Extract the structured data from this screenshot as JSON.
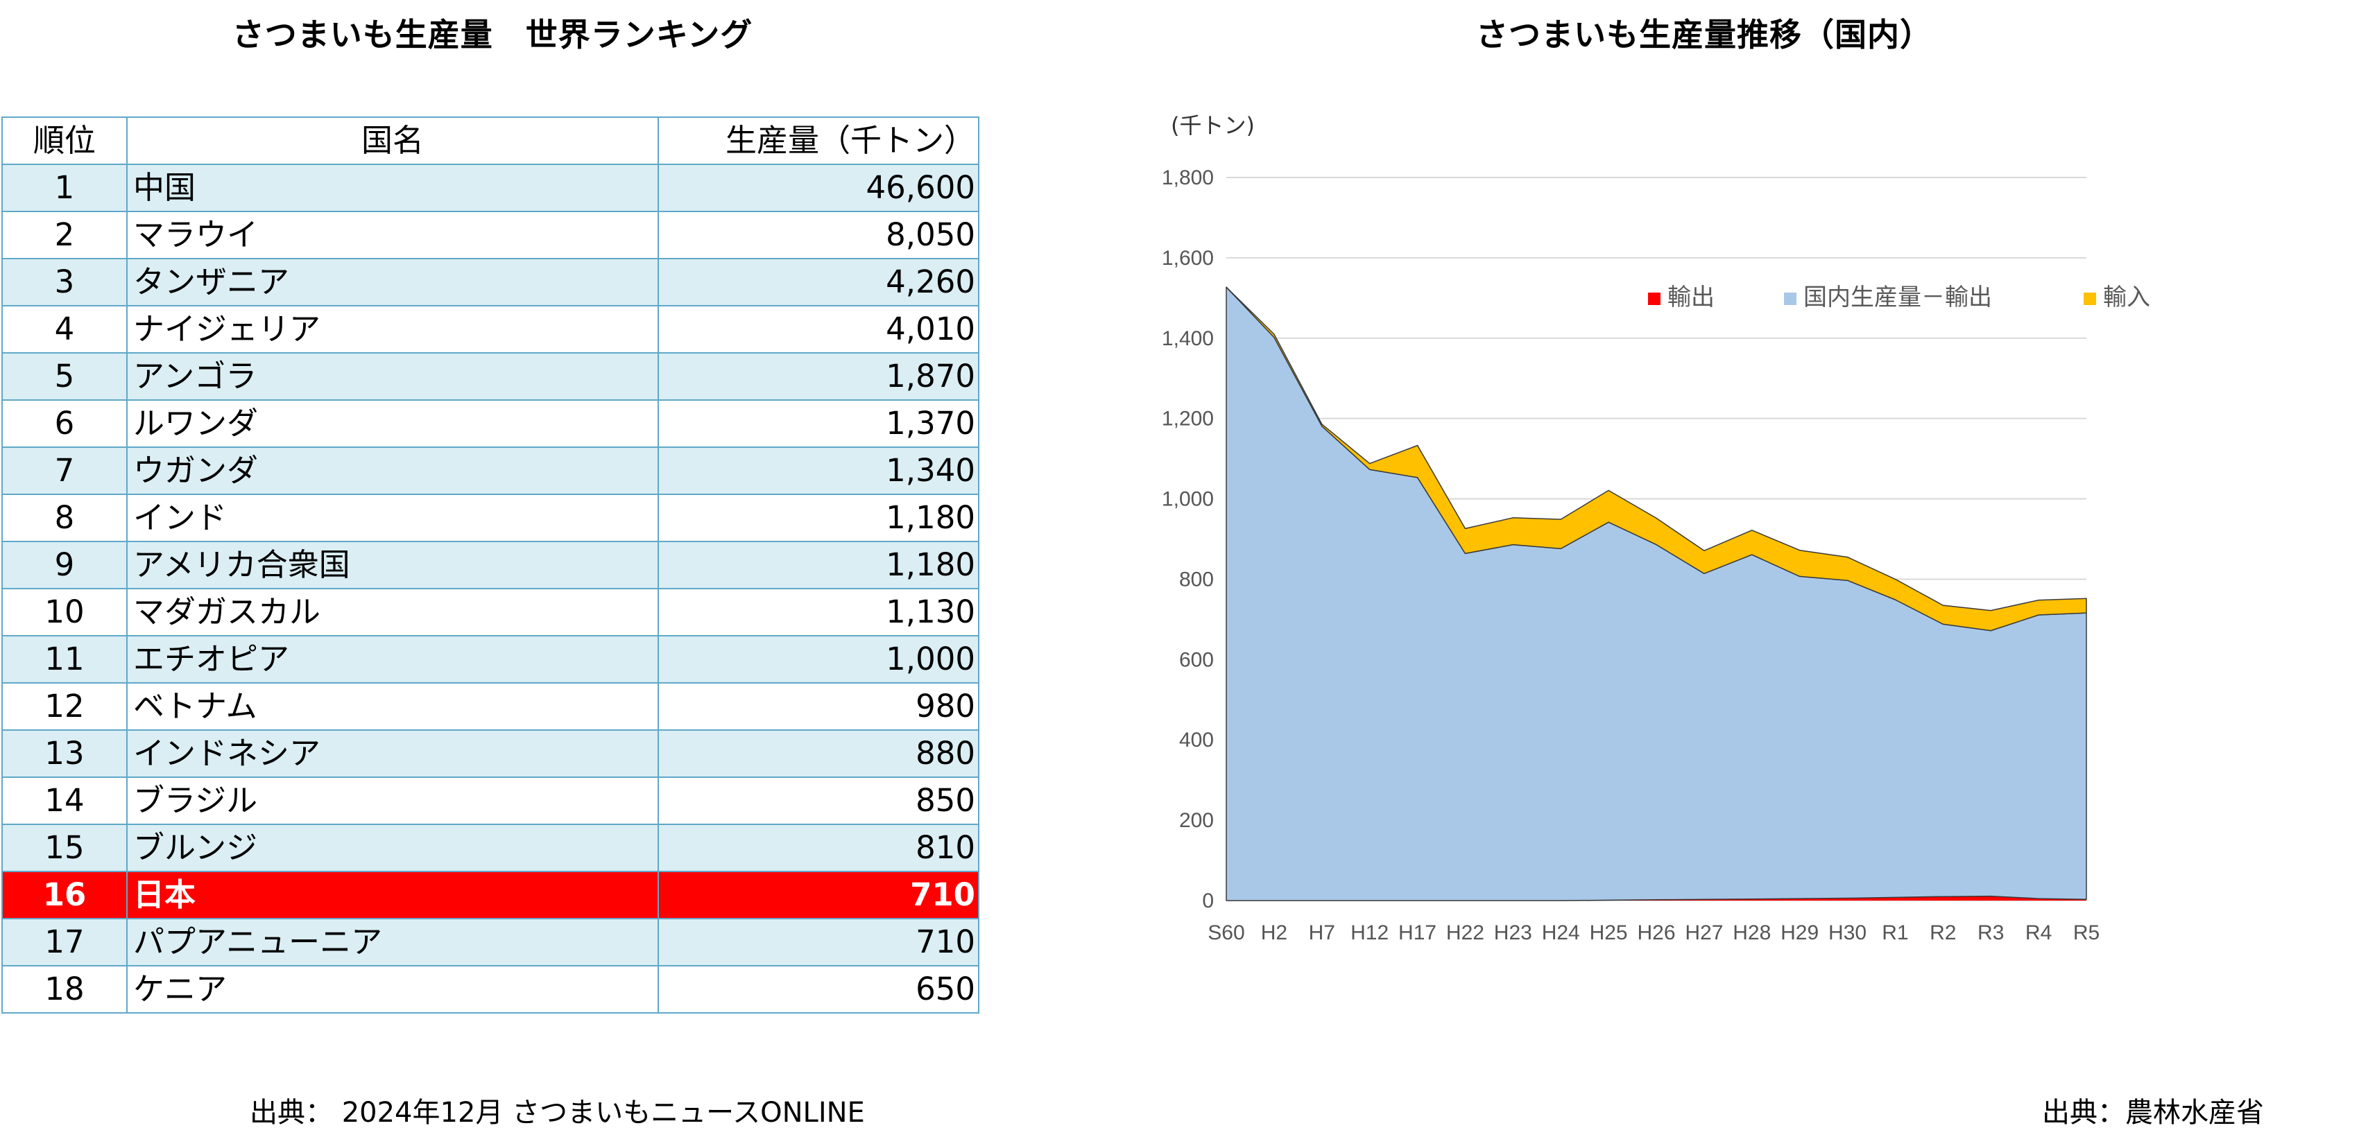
{
  "left": {
    "title": "さつまいも生産量　世界ランキング",
    "headers": [
      "順位",
      "国名",
      "生産量（千トン）"
    ],
    "rows": [
      {
        "rank": "1",
        "country": "中国",
        "value": "46,600"
      },
      {
        "rank": "2",
        "country": "マラウイ",
        "value": "8,050"
      },
      {
        "rank": "3",
        "country": "タンザニア",
        "value": "4,260"
      },
      {
        "rank": "4",
        "country": "ナイジェリア",
        "value": "4,010"
      },
      {
        "rank": "5",
        "country": "アンゴラ",
        "value": "1,870"
      },
      {
        "rank": "6",
        "country": "ルワンダ",
        "value": "1,370"
      },
      {
        "rank": "7",
        "country": "ウガンダ",
        "value": "1,340"
      },
      {
        "rank": "8",
        "country": "インド",
        "value": "1,180"
      },
      {
        "rank": "9",
        "country": "アメリカ合衆国",
        "value": "1,180"
      },
      {
        "rank": "10",
        "country": "マダガスカル",
        "value": "1,130"
      },
      {
        "rank": "11",
        "country": "エチオピア",
        "value": "1,000"
      },
      {
        "rank": "12",
        "country": "ベトナム",
        "value": "980"
      },
      {
        "rank": "13",
        "country": "インドネシア",
        "value": "880"
      },
      {
        "rank": "14",
        "country": "ブラジル",
        "value": "850"
      },
      {
        "rank": "15",
        "country": "ブルンジ",
        "value": "810"
      },
      {
        "rank": "16",
        "country": "日本",
        "value": "710",
        "highlight": true
      },
      {
        "rank": "17",
        "country": "パプアニューニア",
        "value": "710"
      },
      {
        "rank": "18",
        "country": "ケニア",
        "value": "650"
      }
    ],
    "source": "出典：  2024年12月 さつまいもニュースONLINE",
    "colors": {
      "stripe": "#daeef4",
      "border": "#5fa8c8",
      "highlight": "#ff0000"
    }
  },
  "right": {
    "title": "さつまいも生産量推移（国内）",
    "source": "出典：農林水産省"
  },
  "chart_data": {
    "type": "area",
    "stacked": true,
    "title": "さつまいも生産量推移（国内）",
    "unit_label": "(千トン)",
    "categories": [
      "S60",
      "H2",
      "H7",
      "H12",
      "H17",
      "H22",
      "H23",
      "H24",
      "H25",
      "H26",
      "H27",
      "H28",
      "H29",
      "H30",
      "R1",
      "R2",
      "R3",
      "R4",
      "R5"
    ],
    "ylim": [
      0,
      1800
    ],
    "yticks": [
      "0",
      "200",
      "400",
      "600",
      "800",
      "1,000",
      "1,200",
      "1,400",
      "1,600",
      "1,800"
    ],
    "grid": true,
    "legend_position": "top-right",
    "series": [
      {
        "name": "輸出",
        "color": "#ff0000",
        "values": [
          0,
          0,
          0,
          0,
          0,
          0,
          0,
          0,
          1,
          2,
          3,
          4,
          5,
          6,
          8,
          10,
          11,
          5,
          3
        ]
      },
      {
        "name": "国内生産量－輸出",
        "color": "#a9c8e8",
        "values": [
          1527,
          1402,
          1181,
          1073,
          1053,
          864,
          886,
          876,
          941,
          884,
          811,
          857,
          802,
          791,
          741,
          678,
          661,
          706,
          713
        ]
      },
      {
        "name": "輸入",
        "color": "#ffc000",
        "values": [
          0,
          8,
          5,
          15,
          80,
          62,
          67,
          73,
          79,
          66,
          57,
          61,
          65,
          58,
          51,
          47,
          50,
          37,
          36
        ]
      }
    ]
  }
}
